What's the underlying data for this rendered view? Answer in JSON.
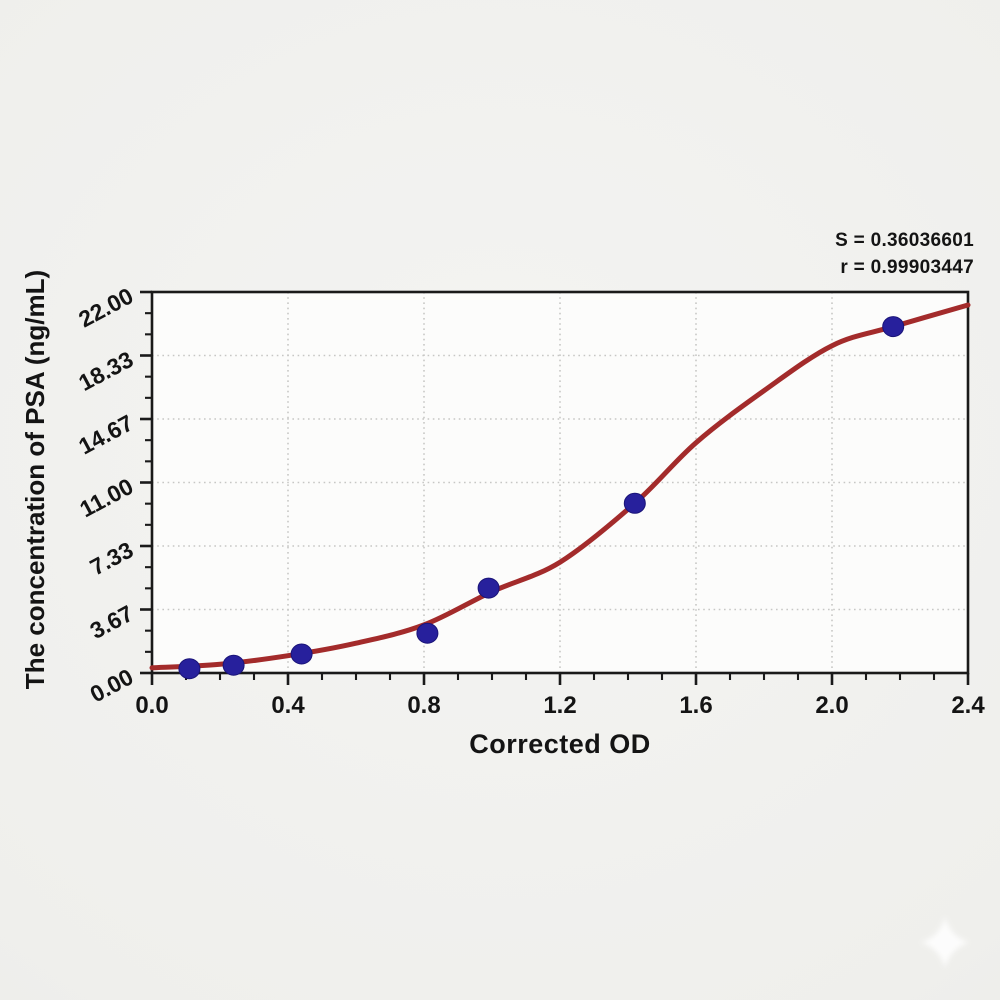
{
  "figure": {
    "y_axis_title": "The concentration of PSA (ng/mL)",
    "x_axis_title": "Corrected OD"
  },
  "chart_data": {
    "type": "scatter",
    "title": "",
    "xlabel": "Corrected OD",
    "ylabel": "The concentration of PSA (ng/mL)",
    "xlim": [
      0,
      2.4
    ],
    "ylim": [
      0,
      22
    ],
    "x_tick_labels": [
      "0.0",
      "0.4",
      "0.8",
      "1.2",
      "1.6",
      "2.0",
      "2.4"
    ],
    "x_tick_values": [
      0,
      0.4,
      0.8,
      1.2,
      1.6,
      2.0,
      2.4
    ],
    "x_minor_step": 0.1,
    "y_tick_labels": [
      "0.00",
      "3.67",
      "7.33",
      "11.00",
      "14.67",
      "18.33",
      "22.00"
    ],
    "y_tick_values": [
      0,
      3.6667,
      7.3333,
      11.0,
      14.6667,
      18.3333,
      22.0
    ],
    "y_minor_step": 1.2222,
    "grid": true,
    "legend": "none",
    "points": {
      "name": "standards",
      "x": [
        0.11,
        0.24,
        0.44,
        0.81,
        0.99,
        1.42,
        2.18
      ],
      "y": [
        0.25,
        0.45,
        1.1,
        2.3,
        4.9,
        9.8,
        20.0
      ]
    },
    "fitted_curve": {
      "name": "4PL fit",
      "x": [
        0,
        0.2,
        0.4,
        0.6,
        0.8,
        1.0,
        1.2,
        1.42,
        1.6,
        1.8,
        2.0,
        2.18,
        2.4
      ],
      "y": [
        0.3,
        0.5,
        1.0,
        1.72,
        2.78,
        4.7,
        6.4,
        9.8,
        13.3,
        16.3,
        18.9,
        20.0,
        21.25
      ]
    },
    "annotation": {
      "s_label": "S = 0.36036601",
      "r_label": "r = 0.99903447"
    },
    "colors": {
      "curve": "#a32b2b",
      "points": "#27209c",
      "points_stroke": "#1a1478",
      "axis": "#1a1a1a",
      "grid": "#c7c7c5",
      "plot_bg": "#fcfcfb",
      "page_bg": "#efefed",
      "text": "#141414",
      "watermark": "#ffffff"
    }
  }
}
